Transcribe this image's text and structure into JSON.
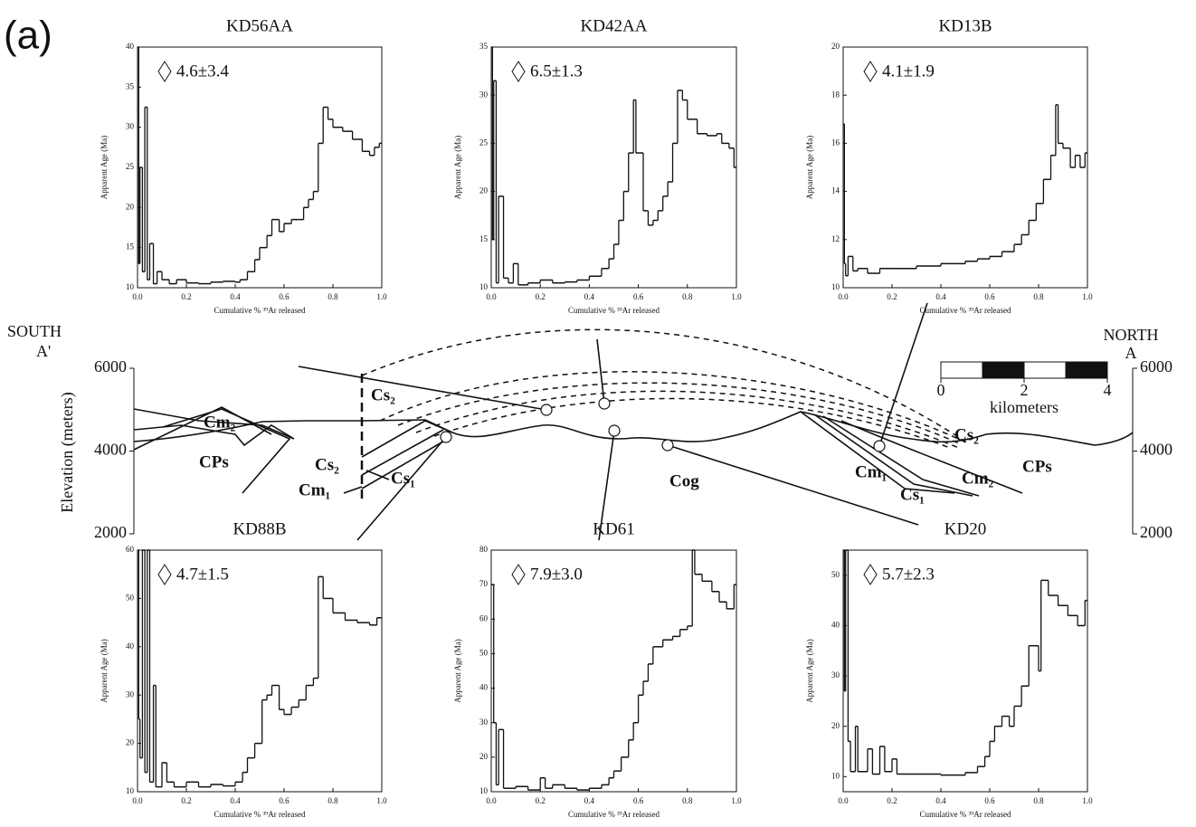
{
  "panel_label": "(a)",
  "chart_data": [
    {
      "type": "line",
      "title": "KD56AA",
      "annotation": "4.6±3.4",
      "xlabel": "Cumulative % ³⁹Ar released",
      "ylabel": "Apparent Age (Ma)",
      "xlim": [
        0,
        1
      ],
      "xticks": [
        {
          "value": 0,
          "label": "0.0"
        },
        0.2,
        0.4,
        0.6,
        0.8,
        {
          "value": 1,
          "label": "1.0"
        }
      ],
      "ylim": [
        10,
        40
      ],
      "yticks": [
        10,
        15,
        20,
        25,
        30,
        35,
        40
      ],
      "x": [
        0,
        0.005,
        0.01,
        0.02,
        0.03,
        0.04,
        0.05,
        0.065,
        0.08,
        0.1,
        0.13,
        0.16,
        0.2,
        0.25,
        0.3,
        0.35,
        0.4,
        0.42,
        0.45,
        0.48,
        0.5,
        0.53,
        0.55,
        0.58,
        0.6,
        0.63,
        0.66,
        0.68,
        0.7,
        0.72,
        0.74,
        0.76,
        0.78,
        0.8,
        0.84,
        0.88,
        0.92,
        0.95,
        0.97,
        0.99
      ],
      "values": [
        40,
        13,
        25,
        12,
        32.5,
        11,
        15.5,
        10.5,
        12,
        11,
        10.5,
        11,
        10.6,
        10.5,
        10.7,
        10.8,
        10.7,
        11,
        12,
        13.5,
        15,
        16.5,
        18.5,
        17,
        18,
        18.5,
        18.5,
        20,
        21,
        22,
        28,
        32.5,
        31,
        30,
        29.5,
        28.5,
        27,
        26.5,
        27.5,
        28
      ]
    },
    {
      "type": "line",
      "title": "KD42AA",
      "annotation": "6.5±1.3",
      "xlabel": "Cumulative % ³⁹Ar released",
      "ylabel": "Apparent Age (Ma)",
      "xlim": [
        0,
        1
      ],
      "xticks": [
        {
          "value": 0,
          "label": "0.0"
        },
        0.2,
        0.4,
        0.6,
        0.8,
        {
          "value": 1,
          "label": "1.0"
        }
      ],
      "ylim": [
        10,
        35
      ],
      "yticks": [
        10,
        15,
        20,
        25,
        30,
        35
      ],
      "x": [
        0,
        0.005,
        0.01,
        0.02,
        0.03,
        0.05,
        0.07,
        0.09,
        0.11,
        0.15,
        0.2,
        0.25,
        0.3,
        0.35,
        0.4,
        0.45,
        0.48,
        0.5,
        0.52,
        0.54,
        0.56,
        0.58,
        0.59,
        0.62,
        0.64,
        0.66,
        0.68,
        0.7,
        0.72,
        0.74,
        0.76,
        0.78,
        0.8,
        0.84,
        0.88,
        0.92,
        0.94,
        0.97,
        0.99
      ],
      "values": [
        35,
        15,
        31.5,
        10.5,
        19.5,
        11,
        10.5,
        12.5,
        10.3,
        10.5,
        10.8,
        10.5,
        10.6,
        10.8,
        11.2,
        12,
        13,
        14.5,
        17,
        20,
        24,
        29.5,
        24,
        18,
        16.5,
        17,
        18,
        19.5,
        21,
        25,
        30.5,
        29.5,
        27.5,
        26,
        25.8,
        26,
        25,
        24.5,
        22.5
      ]
    },
    {
      "type": "line",
      "title": "KD13B",
      "annotation": "4.1±1.9",
      "xlabel": "Cumulative % ³⁹Ar released",
      "ylabel": "Apparent Age (Ma)",
      "xlim": [
        0,
        1
      ],
      "xticks": [
        {
          "value": 0,
          "label": "0.0"
        },
        0.2,
        0.4,
        0.6,
        0.8,
        {
          "value": 1,
          "label": "1.0"
        }
      ],
      "ylim": [
        10,
        20
      ],
      "yticks": [
        10,
        12,
        14,
        16,
        18,
        20
      ],
      "x": [
        0,
        0.005,
        0.01,
        0.02,
        0.04,
        0.06,
        0.1,
        0.15,
        0.2,
        0.3,
        0.4,
        0.5,
        0.55,
        0.6,
        0.65,
        0.7,
        0.73,
        0.76,
        0.79,
        0.82,
        0.85,
        0.87,
        0.88,
        0.9,
        0.93,
        0.95,
        0.97,
        0.99
      ],
      "values": [
        16.8,
        11,
        10.5,
        11.3,
        10.7,
        10.8,
        10.6,
        10.8,
        10.8,
        10.9,
        11,
        11.1,
        11.2,
        11.3,
        11.5,
        11.8,
        12.2,
        12.8,
        13.5,
        14.5,
        15.5,
        17.6,
        16,
        15.8,
        15,
        15.5,
        15,
        15.6
      ]
    },
    {
      "type": "line",
      "title": "KD88B",
      "annotation": "4.7±1.5",
      "xlabel": "Cumulative % ³⁹Ar released",
      "ylabel": "Apparent Age (Ma)",
      "xlim": [
        0,
        1
      ],
      "xticks": [
        {
          "value": 0,
          "label": "0.0"
        },
        0.2,
        0.4,
        0.6,
        0.8,
        {
          "value": 1,
          "label": "1.0"
        }
      ],
      "ylim": [
        10,
        60
      ],
      "yticks": [
        10,
        20,
        30,
        40,
        50,
        60
      ],
      "x": [
        0,
        0.005,
        0.01,
        0.02,
        0.03,
        0.04,
        0.05,
        0.065,
        0.075,
        0.1,
        0.12,
        0.15,
        0.2,
        0.25,
        0.3,
        0.35,
        0.4,
        0.43,
        0.45,
        0.48,
        0.51,
        0.53,
        0.55,
        0.58,
        0.6,
        0.63,
        0.66,
        0.69,
        0.72,
        0.74,
        0.76,
        0.8,
        0.85,
        0.9,
        0.95,
        0.98
      ],
      "values": [
        60,
        25,
        17,
        60,
        14,
        60,
        12,
        32,
        11,
        16,
        12,
        11,
        12,
        11,
        11.5,
        11.2,
        12,
        14,
        17,
        20,
        29,
        30,
        32,
        27,
        26,
        27.5,
        29,
        32,
        33.5,
        54.5,
        50,
        47,
        45.5,
        45,
        44.5,
        46
      ]
    },
    {
      "type": "line",
      "title": "KD61",
      "annotation": "7.9±3.0",
      "xlabel": "Cumulative % ³⁹Ar released",
      "ylabel": "Apparent Age (Ma)",
      "xlim": [
        0,
        1
      ],
      "xticks": [
        {
          "value": 0,
          "label": "0.0"
        },
        0.2,
        0.4,
        0.6,
        0.8,
        {
          "value": 1,
          "label": "1.0"
        }
      ],
      "ylim": [
        10,
        80
      ],
      "yticks": [
        10,
        20,
        30,
        40,
        50,
        60,
        70,
        80
      ],
      "x": [
        0,
        0.01,
        0.02,
        0.03,
        0.05,
        0.1,
        0.15,
        0.2,
        0.22,
        0.25,
        0.3,
        0.35,
        0.4,
        0.45,
        0.48,
        0.5,
        0.53,
        0.56,
        0.58,
        0.6,
        0.62,
        0.64,
        0.66,
        0.7,
        0.74,
        0.77,
        0.8,
        0.82,
        0.83,
        0.86,
        0.9,
        0.93,
        0.96,
        0.99
      ],
      "values": [
        70,
        30,
        12,
        28,
        11,
        11.5,
        10.5,
        14,
        11,
        12,
        11,
        10.5,
        11,
        12,
        14,
        16,
        20,
        25,
        30,
        38,
        42,
        47,
        52,
        54,
        55,
        57,
        58,
        80,
        73,
        71,
        68,
        65,
        63,
        70
      ]
    },
    {
      "type": "line",
      "title": "KD20",
      "annotation": "5.7±2.3",
      "xlabel": "Cumulative % ³⁹Ar released",
      "ylabel": "Apparent Age (Ma)",
      "xlim": [
        0,
        1
      ],
      "xticks": [
        {
          "value": 0,
          "label": "0.0"
        },
        0.2,
        0.4,
        0.6,
        0.8,
        {
          "value": 1,
          "label": "1.0"
        }
      ],
      "ylim": [
        7,
        55
      ],
      "yticks": [
        10,
        20,
        30,
        40,
        50
      ],
      "x": [
        0,
        0.005,
        0.01,
        0.02,
        0.03,
        0.05,
        0.06,
        0.1,
        0.12,
        0.15,
        0.17,
        0.2,
        0.22,
        0.3,
        0.4,
        0.5,
        0.55,
        0.58,
        0.6,
        0.62,
        0.65,
        0.68,
        0.7,
        0.73,
        0.76,
        0.8,
        0.81,
        0.84,
        0.88,
        0.92,
        0.96,
        0.99
      ],
      "values": [
        55,
        27,
        55,
        17,
        11,
        20,
        11,
        15.5,
        10.5,
        16,
        11,
        13.5,
        10.5,
        10.5,
        10.3,
        10.8,
        12,
        14,
        17,
        20,
        22,
        20,
        24,
        28,
        36,
        31,
        49,
        46,
        44,
        42,
        40,
        45
      ]
    }
  ],
  "cross_section": {
    "south": "SOUTH",
    "south_mark": "A'",
    "north": "NORTH",
    "north_mark": "A",
    "ylabel": "Elevation (meters)",
    "ylim": [
      2000,
      6000
    ],
    "yticks": [
      2000,
      4000,
      6000
    ],
    "units": [
      "Cm₂",
      "Cs₂",
      "CPs",
      "Cs₂",
      "Cs₁",
      "Cm₁",
      "Cog",
      "Cs₂",
      "Cm₁",
      "Cm₂",
      "Cs₁",
      "CPs"
    ],
    "scale": {
      "xlim": [
        0,
        4
      ],
      "xticks": [
        0,
        2,
        4
      ],
      "label": "kilometers"
    }
  }
}
